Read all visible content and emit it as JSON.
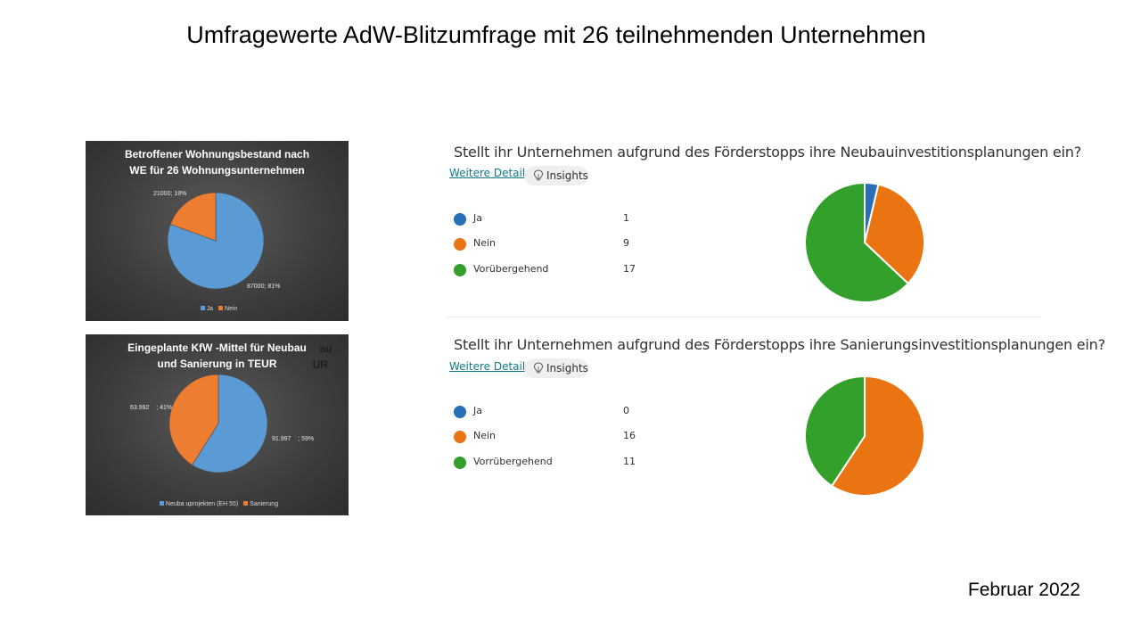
{
  "slide": {
    "title": "Umfragewerte AdW-Blitzumfrage mit 26 teilnehmenden Unternehmen",
    "date": "Februar 2022"
  },
  "chart_data": [
    {
      "type": "pie",
      "title": "Betroffener Wohnungsbestand nach WE für 26 Wohnungsunternehmen",
      "title_line1": "Betroffener Wohnungsbestand nach",
      "title_line2": "WE für 26 Wohnungsunternehmen",
      "categories": [
        "Ja",
        "Nein"
      ],
      "values": [
        87000,
        21000
      ],
      "data_labels": [
        "87000; 81%",
        "21000; 19%"
      ],
      "colors": [
        "#5b9bd5",
        "#ed7d31"
      ],
      "legend": "bottom"
    },
    {
      "type": "pie",
      "title": "Eingeplante KfW-Mittel für Neubau und Sanierung in TEUR",
      "title_line1": "Eingeplante KfW  -Mittel für Neubau",
      "title_line2": "und Sanierung in TEUR",
      "categories": [
        "Neubauprojekten (EH 55)",
        "Sanierung"
      ],
      "legend_labels": [
        "Neuba uprojekten (EH 55)",
        "Sanierung"
      ],
      "values": [
        91997,
        63992
      ],
      "data_labels": [
        "91.997    ; 59%",
        "63.992    ; 41%"
      ],
      "colors": [
        "#5b9bd5",
        "#ed7d31"
      ],
      "legend": "bottom"
    },
    {
      "type": "pie",
      "title": "Stellt ihr Unternehmen aufgrund des Förderstopps ihre Neubauinvestitionsplanungen ein?",
      "categories": [
        "Ja",
        "Nein",
        "Vorübergehend"
      ],
      "values": [
        1,
        9,
        17
      ],
      "colors": [
        "#2a6fb5",
        "#ea7312",
        "#33a02c"
      ],
      "legend": "left-list"
    },
    {
      "type": "pie",
      "title": "Stellt ihr Unternehmen aufgrund des Förderstopps ihre Sanierungsinvestitionsplanungen ein?",
      "categories": [
        "Ja",
        "Nein",
        "Vorrübergehend"
      ],
      "values": [
        0,
        16,
        11
      ],
      "colors": [
        "#2a6fb5",
        "#ea7312",
        "#33a02c"
      ],
      "legend": "left-list"
    }
  ],
  "ui": {
    "details_label": "Weitere Details",
    "insights_label": "Insights",
    "bulb_icon": "lightbulb-icon"
  }
}
